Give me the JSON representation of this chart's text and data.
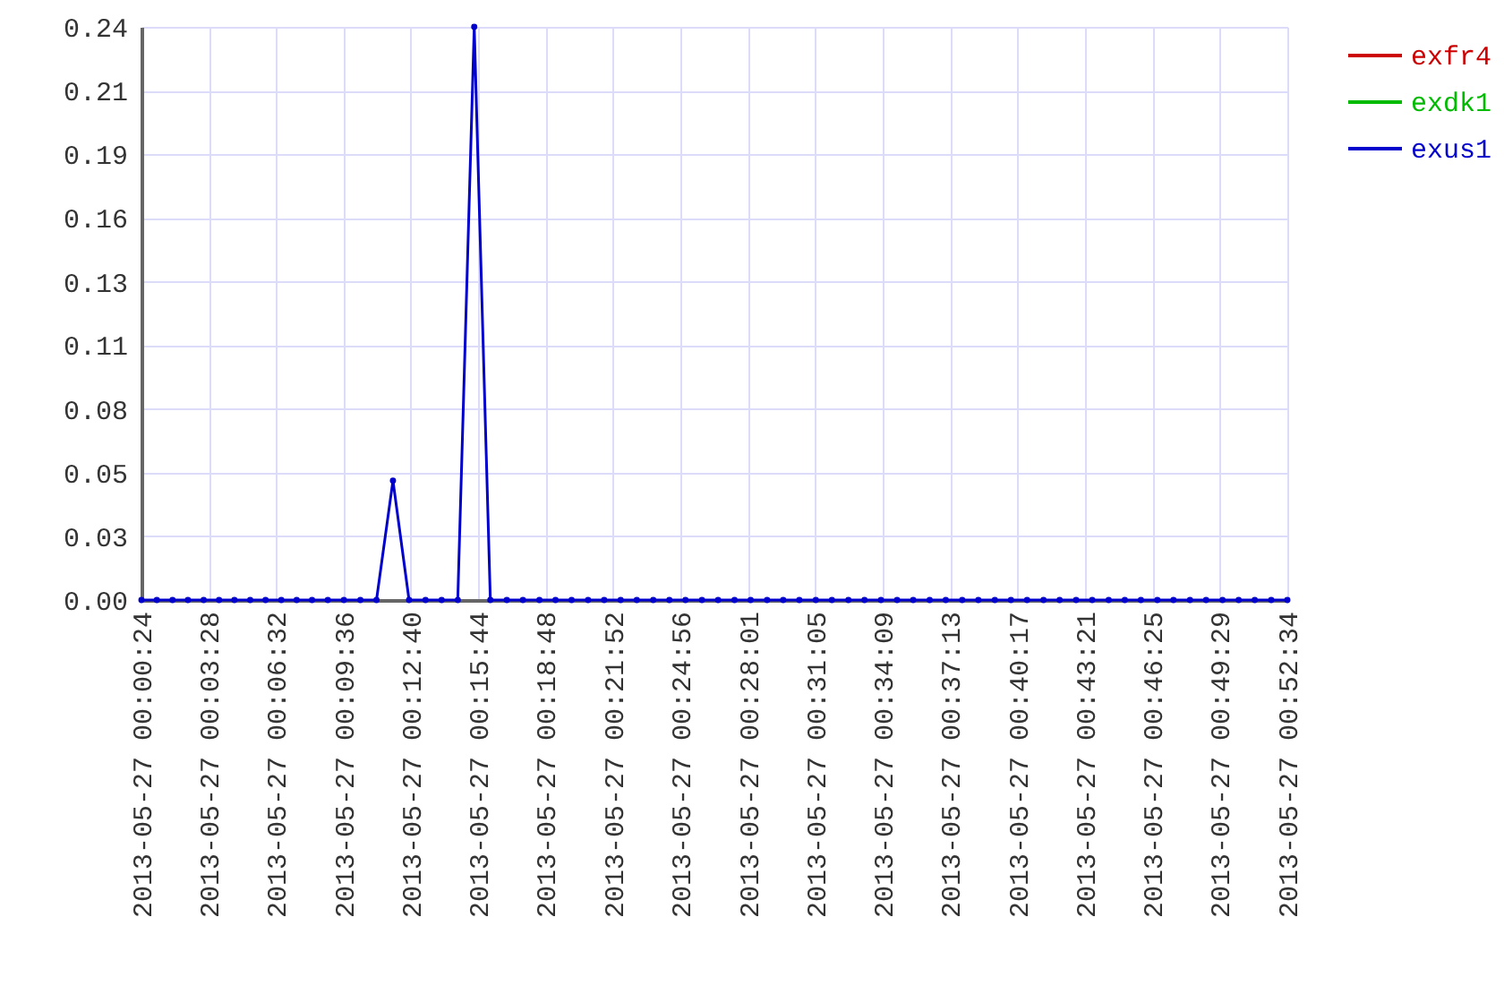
{
  "chart_data": {
    "type": "line",
    "x": [
      "2013-05-27T00:00:24",
      "2013-05-27T00:01:06",
      "2013-05-27T00:01:49",
      "2013-05-27T00:02:31",
      "2013-05-27T00:03:14",
      "2013-05-27T00:03:56",
      "2013-05-27T00:04:38",
      "2013-05-27T00:05:21",
      "2013-05-27T00:06:03",
      "2013-05-27T00:06:46",
      "2013-05-27T00:07:28",
      "2013-05-27T00:08:10",
      "2013-05-27T00:08:53",
      "2013-05-27T00:09:37",
      "2013-05-27T00:10:22",
      "2013-05-27T00:11:06",
      "2013-05-27T00:11:51",
      "2013-05-27T00:12:35",
      "2013-05-27T00:13:20",
      "2013-05-27T00:14:04",
      "2013-05-27T00:14:48",
      "2013-05-27T00:15:33",
      "2013-05-27T00:16:17",
      "2013-05-27T00:17:02",
      "2013-05-27T00:17:46",
      "2013-05-27T00:18:31",
      "2013-05-27T00:19:15",
      "2013-05-27T00:19:59",
      "2013-05-27T00:20:44",
      "2013-05-27T00:21:28",
      "2013-05-27T00:22:13",
      "2013-05-27T00:22:57",
      "2013-05-27T00:23:42",
      "2013-05-27T00:24:26",
      "2013-05-27T00:25:10",
      "2013-05-27T00:25:55",
      "2013-05-27T00:26:39",
      "2013-05-27T00:27:24",
      "2013-05-27T00:28:08",
      "2013-05-27T00:28:53",
      "2013-05-27T00:29:37",
      "2013-05-27T00:30:21",
      "2013-05-27T00:31:06",
      "2013-05-27T00:31:50",
      "2013-05-27T00:32:35",
      "2013-05-27T00:33:19",
      "2013-05-27T00:34:04",
      "2013-05-27T00:34:48",
      "2013-05-27T00:35:32",
      "2013-05-27T00:36:17",
      "2013-05-27T00:37:01",
      "2013-05-27T00:37:46",
      "2013-05-27T00:38:30",
      "2013-05-27T00:39:15",
      "2013-05-27T00:39:59",
      "2013-05-27T00:40:43",
      "2013-05-27T00:41:28",
      "2013-05-27T00:42:12",
      "2013-05-27T00:42:57",
      "2013-05-27T00:43:41",
      "2013-05-27T00:44:26",
      "2013-05-27T00:45:10",
      "2013-05-27T00:45:54",
      "2013-05-27T00:46:39",
      "2013-05-27T00:47:23",
      "2013-05-27T00:48:08",
      "2013-05-27T00:48:52",
      "2013-05-27T00:49:37",
      "2013-05-27T00:50:21",
      "2013-05-27T00:51:05",
      "2013-05-27T00:51:50",
      "2013-05-27T00:52:34"
    ],
    "xlim": [
      "2013-05-27T00:00:24",
      "2013-05-27T00:52:34"
    ],
    "xticks": [
      {
        "value": "2013-05-27T00:00:24",
        "label": "2013-05-27 00:00:24"
      },
      {
        "value": "2013-05-27T00:03:28",
        "label": "2013-05-27 00:03:28"
      },
      {
        "value": "2013-05-27T00:06:32",
        "label": "2013-05-27 00:06:32"
      },
      {
        "value": "2013-05-27T00:09:36",
        "label": "2013-05-27 00:09:36"
      },
      {
        "value": "2013-05-27T00:12:40",
        "label": "2013-05-27 00:12:40"
      },
      {
        "value": "2013-05-27T00:15:44",
        "label": "2013-05-27 00:15:44"
      },
      {
        "value": "2013-05-27T00:18:48",
        "label": "2013-05-27 00:18:48"
      },
      {
        "value": "2013-05-27T00:21:52",
        "label": "2013-05-27 00:21:52"
      },
      {
        "value": "2013-05-27T00:24:56",
        "label": "2013-05-27 00:24:56"
      },
      {
        "value": "2013-05-27T00:28:01",
        "label": "2013-05-27 00:28:01"
      },
      {
        "value": "2013-05-27T00:31:05",
        "label": "2013-05-27 00:31:05"
      },
      {
        "value": "2013-05-27T00:34:09",
        "label": "2013-05-27 00:34:09"
      },
      {
        "value": "2013-05-27T00:37:13",
        "label": "2013-05-27 00:37:13"
      },
      {
        "value": "2013-05-27T00:40:17",
        "label": "2013-05-27 00:40:17"
      },
      {
        "value": "2013-05-27T00:43:21",
        "label": "2013-05-27 00:43:21"
      },
      {
        "value": "2013-05-27T00:46:25",
        "label": "2013-05-27 00:46:25"
      },
      {
        "value": "2013-05-27T00:49:29",
        "label": "2013-05-27 00:49:29"
      },
      {
        "value": "2013-05-27T00:52:34",
        "label": "2013-05-27 00:52:34"
      }
    ],
    "ylim": [
      0,
      0.24
    ],
    "yticks": [
      {
        "value": 0,
        "label": "0.00"
      },
      {
        "value": 0.0267,
        "label": "0.03"
      },
      {
        "value": 0.0533,
        "label": "0.05"
      },
      0.08,
      {
        "value": 0.1067,
        "label": "0.11"
      },
      {
        "value": 0.1333,
        "label": "0.13"
      },
      0.16,
      {
        "value": 0.1867,
        "label": "0.19"
      },
      {
        "value": 0.2133,
        "label": "0.21"
      },
      0.24
    ],
    "series": [
      {
        "name": "exfr4",
        "color": "#cc0000",
        "values": [
          null,
          null,
          null,
          null,
          null,
          null,
          null,
          null,
          null,
          null,
          null,
          null,
          null,
          null,
          null,
          null,
          null,
          null,
          null,
          null,
          null,
          null,
          null,
          null,
          null,
          null,
          null,
          null,
          null,
          null,
          null,
          null,
          null,
          null,
          null,
          null,
          null,
          null,
          null,
          null,
          null,
          null,
          null,
          null,
          null,
          null,
          null,
          null,
          null,
          null,
          null,
          null,
          null,
          null,
          null,
          null,
          null,
          null,
          null,
          null,
          null,
          null,
          null,
          null,
          null,
          null,
          null,
          null,
          null,
          null,
          null,
          null
        ]
      },
      {
        "name": "exdk1",
        "color": "#00bb00",
        "values": [
          null,
          null,
          null,
          null,
          null,
          null,
          null,
          null,
          null,
          null,
          null,
          null,
          null,
          null,
          null,
          null,
          null,
          null,
          null,
          null,
          null,
          null,
          null,
          null,
          null,
          null,
          null,
          null,
          null,
          null,
          null,
          null,
          null,
          null,
          null,
          null,
          null,
          null,
          null,
          null,
          null,
          null,
          null,
          null,
          null,
          null,
          null,
          null,
          null,
          null,
          null,
          null,
          null,
          null,
          null,
          null,
          null,
          null,
          null,
          null,
          null,
          null,
          null,
          null,
          null,
          null,
          null,
          null,
          null,
          null,
          null,
          null
        ]
      },
      {
        "name": "exus1",
        "color": "#0000cc",
        "values": [
          0,
          0,
          0,
          0,
          0,
          0,
          0,
          0,
          0,
          0,
          0,
          0,
          0,
          0,
          0,
          0,
          0.05,
          0,
          0,
          0,
          0,
          0.24,
          0,
          0,
          0,
          0,
          0,
          0,
          0,
          0,
          0,
          0,
          0,
          0,
          0,
          0,
          0,
          0,
          0,
          0,
          0,
          0,
          0,
          0,
          0,
          0,
          0,
          0,
          0,
          0,
          0,
          0,
          0,
          0,
          0,
          0,
          0,
          0,
          0,
          0,
          0,
          0,
          0,
          0,
          0,
          0,
          0,
          0,
          0,
          0,
          0,
          0
        ]
      }
    ],
    "grid": true,
    "legend": "top right",
    "marker": "circle",
    "line_style": "solid"
  }
}
